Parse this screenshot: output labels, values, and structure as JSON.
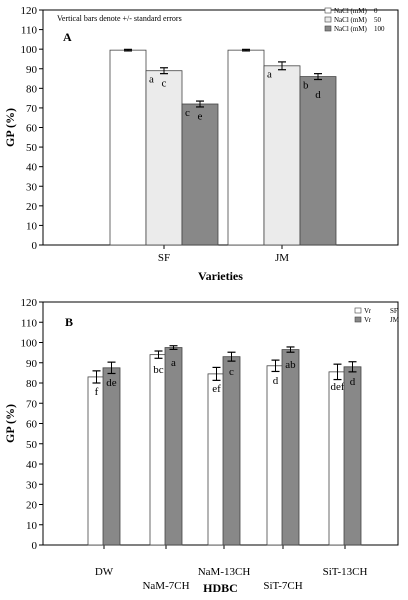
{
  "chart_data": [
    {
      "type": "bar",
      "panel_label": "A",
      "note": "Vertical bars denote +/- standard errors",
      "xlabel": "Varieties",
      "ylabel": "GP (%)",
      "ylim": [
        0,
        120
      ],
      "yticks": [
        "0",
        "10",
        "20",
        "30",
        "40",
        "50",
        "60",
        "70",
        "80",
        "90",
        "100",
        "110",
        "120"
      ],
      "categories": [
        "SF",
        "JM"
      ],
      "legend": {
        "placement": "top-right",
        "entries": [
          {
            "label": "NaCl (mM)",
            "value": "0"
          },
          {
            "label": "NaCl (mM)",
            "value": "50"
          },
          {
            "label": "NaCl (mM)",
            "value": "100"
          }
        ]
      },
      "series": [
        {
          "values": [
            99.5,
            99.5
          ],
          "errors": [
            0.4,
            0.4
          ],
          "letters": [
            "",
            ""
          ],
          "color": "#ffffff"
        },
        {
          "values": [
            89,
            91.5
          ],
          "errors": [
            1.5,
            2.0
          ],
          "letters": [
            "a",
            "a"
          ],
          "color": "#ebebeb"
        },
        {
          "values": [
            72,
            86
          ],
          "errors": [
            1.5,
            1.5
          ],
          "letters": [
            "c",
            "b"
          ],
          "color": "#888888"
        }
      ],
      "extra_letters": [
        {
          "text": "c",
          "category": 0,
          "series": 1,
          "y": 81
        },
        {
          "text": "e",
          "category": 0,
          "series": 2,
          "y": 64
        },
        {
          "text": "d",
          "category": 1,
          "series": 2,
          "y": 75
        }
      ]
    },
    {
      "type": "bar",
      "panel_label": "B",
      "xlabel": "HDBC",
      "ylabel": "GP (%)",
      "ylim": [
        0,
        120
      ],
      "yticks": [
        "0",
        "10",
        "20",
        "30",
        "40",
        "50",
        "60",
        "70",
        "80",
        "90",
        "100",
        "110",
        "120"
      ],
      "categories": [
        "DW",
        "NaM-7CH",
        "NaM-13CH",
        "SiT-7CH",
        "SiT-13CH"
      ],
      "legend": {
        "placement": "top-right",
        "entries": [
          {
            "label": "Vr",
            "value": "SF"
          },
          {
            "label": "Vr",
            "value": "JM"
          }
        ]
      },
      "series": [
        {
          "values": [
            83,
            94,
            84.5,
            88.5,
            85.5
          ],
          "errors": [
            3,
            1.8,
            3.2,
            2.8,
            3.8
          ],
          "letters": [
            "f",
            "bc",
            "ef",
            "d",
            "def"
          ],
          "color": "#ffffff"
        },
        {
          "values": [
            87.5,
            97.5,
            93,
            96.5,
            88
          ],
          "errors": [
            2.8,
            0.9,
            2.2,
            1.3,
            2.5
          ],
          "letters": [
            "de",
            "a",
            "c",
            "ab",
            "d"
          ],
          "color": "#888888"
        }
      ]
    }
  ]
}
